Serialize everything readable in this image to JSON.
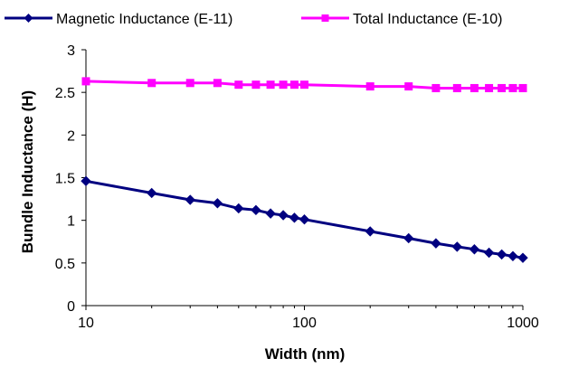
{
  "chart_data": {
    "type": "line",
    "title": "",
    "xlabel": "Width (nm)",
    "ylabel": "Bundle Inductance (H)",
    "x_scale": "log",
    "xlim": [
      10,
      1000
    ],
    "ylim": [
      0,
      3
    ],
    "x_ticks": [
      "10",
      "100",
      "1000"
    ],
    "y_ticks": [
      "0",
      "0.5",
      "1",
      "1.5",
      "2",
      "2.5",
      "3"
    ],
    "grid": false,
    "legend_position": "top",
    "x": [
      10,
      20,
      30,
      40,
      50,
      60,
      70,
      80,
      90,
      100,
      200,
      300,
      400,
      500,
      600,
      700,
      800,
      900,
      1000
    ],
    "series": [
      {
        "name": "Magnetic Inductance (E-11)",
        "color": "#000080",
        "marker": "diamond",
        "values": [
          1.46,
          1.32,
          1.24,
          1.2,
          1.14,
          1.12,
          1.08,
          1.06,
          1.03,
          1.01,
          0.87,
          0.79,
          0.73,
          0.69,
          0.66,
          0.62,
          0.6,
          0.58,
          0.56
        ]
      },
      {
        "name": "Total Inductance (E-10)",
        "color": "#FF00FF",
        "marker": "square",
        "values": [
          2.63,
          2.61,
          2.61,
          2.61,
          2.59,
          2.59,
          2.59,
          2.59,
          2.59,
          2.59,
          2.57,
          2.57,
          2.55,
          2.55,
          2.55,
          2.55,
          2.55,
          2.55,
          2.55
        ]
      }
    ]
  }
}
